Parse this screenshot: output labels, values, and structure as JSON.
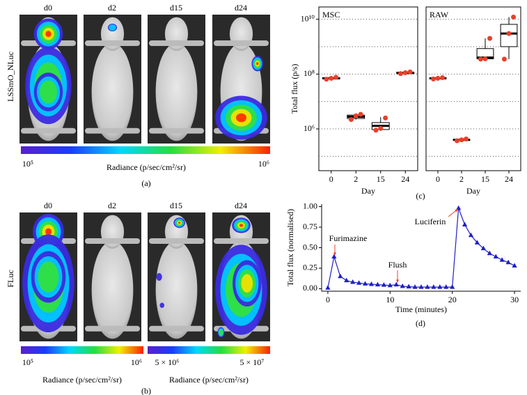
{
  "figure": {
    "a": {
      "columns": [
        "d0",
        "d2",
        "d15",
        "d24"
      ],
      "row_label": "LSSmO_NLuc",
      "colorbar": {
        "min_label": "10⁵",
        "max_label": "10⁶",
        "label": "Radiance (p/sec/cm²/sr)"
      },
      "caption": "(a)"
    },
    "b": {
      "columns": [
        "d0",
        "d2",
        "d15",
        "d24"
      ],
      "row_label": "FLuc",
      "colorbars": [
        {
          "min_label": "10⁵",
          "max_label": "10⁶",
          "label": "Radiance (p/sec/cm²/sr)"
        },
        {
          "min_label": "5 × 10⁶",
          "max_label": "5 × 10⁷",
          "label": "Radiance (p/sec/cm²/sr)"
        }
      ],
      "caption": "(b)"
    },
    "c": {
      "caption": "(c)"
    },
    "d": {
      "caption": "(d)"
    }
  },
  "chart_data": [
    {
      "type": "box",
      "title": "MSC",
      "ylabel": "Total flux (p/s)",
      "xlabel": "Day",
      "log": true,
      "categories": [
        "0",
        "2",
        "15",
        "24"
      ],
      "ylim": [
        30000,
        28000000000
      ],
      "yticks": [
        {
          "value": 1000000,
          "label": "10⁶"
        },
        {
          "value": 100000000,
          "label": "10⁸"
        },
        {
          "value": 10000000000,
          "label": "10¹⁰"
        }
      ],
      "grid_values": [
        100000,
        1000000,
        10000000,
        100000000,
        1000000000,
        10000000000
      ],
      "boxes": [
        {
          "min": 65000000,
          "q1": 67000000,
          "median": 70000000,
          "q3": 74000000,
          "max": 76000000,
          "points": [
            65000000,
            70000000,
            76000000
          ]
        },
        {
          "min": 2200000,
          "q1": 2400000,
          "median": 2800000,
          "q3": 3200000,
          "max": 3400000,
          "points": [
            2200000,
            3000000,
            3400000
          ]
        },
        {
          "min": 850000,
          "q1": 950000,
          "median": 1300000,
          "q3": 1700000,
          "max": 2700000,
          "points": [
            900000,
            1050000,
            2500000
          ]
        },
        {
          "min": 100000000,
          "q1": 104000000,
          "median": 110000000,
          "q3": 118000000,
          "max": 122000000,
          "points": [
            104000000,
            112000000,
            120000000
          ]
        }
      ]
    },
    {
      "type": "box",
      "title": "RAW",
      "xlabel": "Day",
      "log": true,
      "categories": [
        "0",
        "2",
        "15",
        "24"
      ],
      "ylim": [
        30000,
        28000000000
      ],
      "grid_values": [
        100000,
        1000000,
        10000000,
        100000000,
        1000000000,
        10000000000
      ],
      "boxes": [
        {
          "min": 65000000,
          "q1": 67000000,
          "median": 70000000,
          "q3": 73000000,
          "max": 75000000,
          "points": [
            66000000,
            70000000,
            74000000
          ]
        },
        {
          "min": 360000,
          "q1": 380000,
          "median": 400000,
          "q3": 420000,
          "max": 440000,
          "points": [
            370000,
            400000,
            430000
          ]
        },
        {
          "min": 350000000,
          "q1": 360000000,
          "median": 400000000,
          "q3": 850000000,
          "max": 2000000000,
          "points": [
            350000000,
            360000000,
            2000000000
          ]
        },
        {
          "min": 350000000,
          "q1": 1000000000,
          "median": 3000000000,
          "q3": 6500000000,
          "max": 12000000000,
          "points": [
            350000000,
            3000000000,
            12000000000
          ]
        }
      ]
    },
    {
      "type": "line",
      "xlabel": "Time (minutes)",
      "ylabel": "Total flux (normalised)",
      "color": "#1f1fc8",
      "x": [
        0,
        1,
        2,
        3,
        4,
        5,
        6,
        7,
        8,
        9,
        10,
        11,
        12,
        13,
        14,
        15,
        16,
        17,
        18,
        19,
        20,
        21,
        22,
        23,
        24,
        25,
        26,
        27,
        28,
        29,
        30
      ],
      "values": [
        0.01,
        0.39,
        0.15,
        0.1,
        0.08,
        0.07,
        0.06,
        0.055,
        0.05,
        0.045,
        0.04,
        0.05,
        0.03,
        0.025,
        0.02,
        0.02,
        0.02,
        0.02,
        0.02,
        0.02,
        0.02,
        0.98,
        0.78,
        0.65,
        0.56,
        0.49,
        0.43,
        0.39,
        0.35,
        0.32,
        0.28
      ],
      "xlim": [
        -1,
        31
      ],
      "ylim": [
        -0.03,
        1.03
      ],
      "xticks": [
        0,
        10,
        20,
        30
      ],
      "yticks": [
        {
          "value": 0,
          "label": "0.00"
        },
        {
          "value": 0.25,
          "label": "0.25"
        },
        {
          "value": 0.5,
          "label": "0.50"
        },
        {
          "value": 0.75,
          "label": "0.75"
        },
        {
          "value": 1,
          "label": "1.00"
        }
      ],
      "annotations": [
        "Furimazine",
        "Flush",
        "Luciferin"
      ]
    }
  ]
}
